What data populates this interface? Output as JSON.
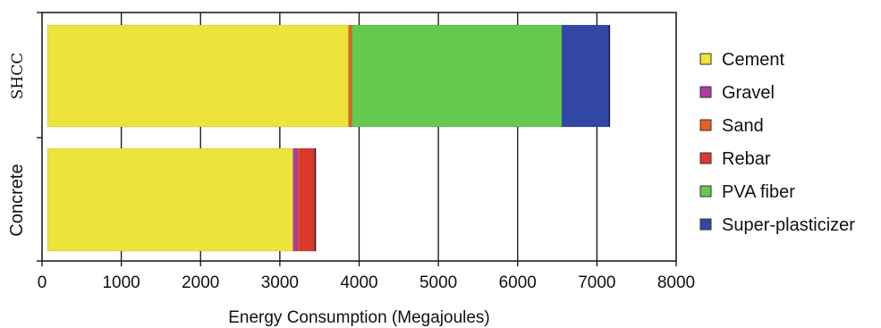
{
  "chart_data": {
    "type": "bar",
    "orientation": "horizontal",
    "stacked": true,
    "categories": [
      "SHCC",
      "Concrete"
    ],
    "series": [
      {
        "name": "Cement",
        "color": "#ece43a",
        "values": [
          3800,
          3100
        ]
      },
      {
        "name": "Gravel",
        "color": "#b03aa6",
        "values": [
          0,
          60
        ]
      },
      {
        "name": "Sand",
        "color": "#e8601f",
        "values": [
          40,
          20
        ]
      },
      {
        "name": "Rebar",
        "color": "#d93a2b",
        "values": [
          0,
          200
        ]
      },
      {
        "name": "PVA fiber",
        "color": "#63c94f",
        "values": [
          2650,
          0
        ]
      },
      {
        "name": "Super-plasticizer",
        "color": "#3247a6",
        "values": [
          600,
          0
        ]
      }
    ],
    "xlabel": "Energy Consumption (Megajoules)",
    "ylabel": "",
    "xlim": [
      0,
      8000
    ],
    "xticks": [
      "0",
      "1000",
      "2000",
      "3000",
      "4000",
      "5000",
      "6000",
      "7000",
      "8000"
    ],
    "grid": "vertical",
    "legend": "right"
  }
}
